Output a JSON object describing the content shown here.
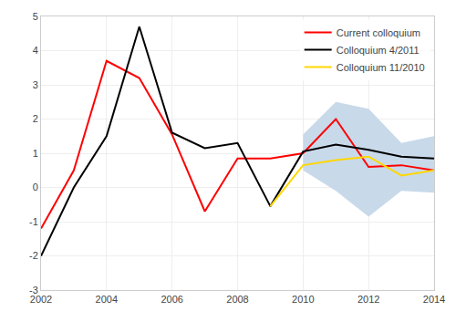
{
  "chart_data": {
    "type": "line",
    "series": [
      {
        "name": "Current colloquium",
        "color": "#FF0000",
        "x": [
          2002,
          2003,
          2004,
          2005,
          2006,
          2007,
          2008,
          2009,
          2010,
          2011,
          2012,
          2013,
          2014
        ],
        "values": [
          -1.2,
          0.5,
          3.7,
          3.2,
          1.55,
          -0.7,
          0.85,
          0.85,
          1.0,
          2.0,
          0.6,
          0.65,
          0.5
        ]
      },
      {
        "name": "Colloquium 4/2011",
        "color": "#000000",
        "x": [
          2002,
          2003,
          2004,
          2005,
          2006,
          2007,
          2008,
          2009,
          2010,
          2011,
          2012,
          2013,
          2014
        ],
        "values": [
          -2.0,
          0.0,
          1.5,
          4.7,
          1.6,
          1.15,
          1.3,
          -0.55,
          1.05,
          1.25,
          1.1,
          0.9,
          0.85
        ]
      },
      {
        "name": "Colloquium 11/2010",
        "color": "#FFD700",
        "x": [
          2009,
          2010,
          2011,
          2012,
          2013,
          2014
        ],
        "values": [
          -0.55,
          0.65,
          0.8,
          0.9,
          0.35,
          0.5
        ]
      }
    ],
    "band": {
      "color": "#C8D9EA",
      "x": [
        2010,
        2011,
        2012,
        2013,
        2014
      ],
      "upper": [
        1.55,
        2.5,
        2.3,
        1.3,
        1.5
      ],
      "lower": [
        0.5,
        -0.1,
        -0.85,
        -0.1,
        -0.15
      ]
    },
    "xlim": [
      2002,
      2014
    ],
    "ylim": [
      -3,
      5
    ],
    "xticks": [
      2002,
      2004,
      2006,
      2008,
      2010,
      2012,
      2014
    ],
    "yticks": [
      -3,
      -2,
      -1,
      0,
      1,
      2,
      3,
      4,
      5
    ],
    "grid": true,
    "legend": "upper right"
  }
}
